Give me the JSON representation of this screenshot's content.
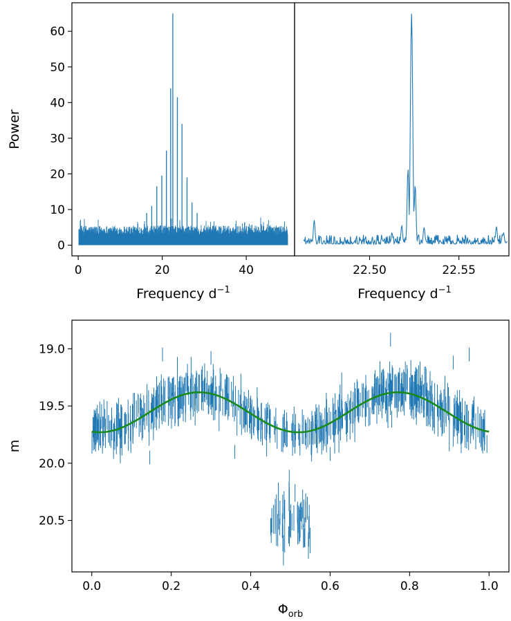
{
  "chart_data": [
    {
      "type": "line",
      "panel": "periodogram-wide",
      "xlabel": "Frequency d",
      "xlabel_sup": "−1",
      "ylabel": "Power",
      "xlim": [
        -1.5,
        51.5
      ],
      "ylim": [
        -3,
        68
      ],
      "xticks": [
        0,
        20,
        40
      ],
      "xtick_labels": [
        "0",
        "20",
        "40"
      ],
      "yticks": [
        0,
        10,
        20,
        30,
        40,
        50,
        60
      ],
      "ytick_labels": [
        "0",
        "10",
        "20",
        "30",
        "40",
        "50",
        "60"
      ],
      "line_color": "#1f77b4",
      "noise_level": 5.5,
      "x_range": [
        0,
        50
      ],
      "peaks": [
        {
          "x": 16.3,
          "y": 9
        },
        {
          "x": 17.5,
          "y": 11
        },
        {
          "x": 18.7,
          "y": 16.5
        },
        {
          "x": 19.9,
          "y": 19.5
        },
        {
          "x": 21.0,
          "y": 26.5
        },
        {
          "x": 22.0,
          "y": 44
        },
        {
          "x": 22.52,
          "y": 65
        },
        {
          "x": 23.6,
          "y": 41.5
        },
        {
          "x": 24.7,
          "y": 34
        },
        {
          "x": 25.9,
          "y": 19
        },
        {
          "x": 27.1,
          "y": 12
        },
        {
          "x": 28.3,
          "y": 9
        }
      ]
    },
    {
      "type": "line",
      "panel": "periodogram-zoom",
      "xlabel": "Frequency d",
      "xlabel_sup": "−1",
      "xlim": [
        22.458,
        22.578
      ],
      "ylim": [
        -3,
        68
      ],
      "xticks": [
        22.5,
        22.55
      ],
      "xtick_labels": [
        "22.50",
        "22.55"
      ],
      "line_color": "#1f77b4",
      "x_range": [
        22.463,
        22.577
      ],
      "peaks": [
        {
          "x": 22.469,
          "y": 7
        },
        {
          "x": 22.5125,
          "y": 3.5
        },
        {
          "x": 22.518,
          "y": 5.5
        },
        {
          "x": 22.5215,
          "y": 21.5
        },
        {
          "x": 22.5235,
          "y": 65
        },
        {
          "x": 22.5255,
          "y": 17
        },
        {
          "x": 22.5305,
          "y": 5
        },
        {
          "x": 22.571,
          "y": 5.2
        },
        {
          "x": 22.575,
          "y": 3.5
        }
      ]
    },
    {
      "type": "scatter",
      "panel": "phase-folded-light-curve",
      "xlabel": "Φ",
      "xlabel_sub": "orb",
      "ylabel": "m",
      "xlim": [
        -0.05,
        1.05
      ],
      "ylim": [
        20.95,
        18.75
      ],
      "y_inverted": true,
      "xticks": [
        0.0,
        0.2,
        0.4,
        0.6,
        0.8,
        1.0
      ],
      "xtick_labels": [
        "0.0",
        "0.2",
        "0.4",
        "0.6",
        "0.8",
        "1.0"
      ],
      "yticks": [
        19.0,
        19.5,
        20.0,
        20.5
      ],
      "ytick_labels": [
        "19.0",
        "19.5",
        "20.0",
        "20.5"
      ],
      "data_color": "#1f77b4",
      "model_color": "#178a17",
      "model": {
        "mean": 19.555,
        "amplitude": 0.175,
        "phase_peak": 0.27,
        "cycles": 2
      },
      "scatter_sigma": 0.14,
      "eclipse": {
        "x_range": [
          0.45,
          0.55
        ],
        "center_mag": 20.48,
        "spread": 0.12
      },
      "outliers": [
        {
          "x": 0.178,
          "y": 19.05
        },
        {
          "x": 0.3,
          "y": 19.08
        },
        {
          "x": 0.752,
          "y": 18.92
        },
        {
          "x": 0.95,
          "y": 19.05
        },
        {
          "x": 0.91,
          "y": 19.12
        },
        {
          "x": 0.36,
          "y": 19.9
        },
        {
          "x": 0.146,
          "y": 19.95
        },
        {
          "x": 0.6,
          "y": 19.92
        }
      ]
    }
  ]
}
